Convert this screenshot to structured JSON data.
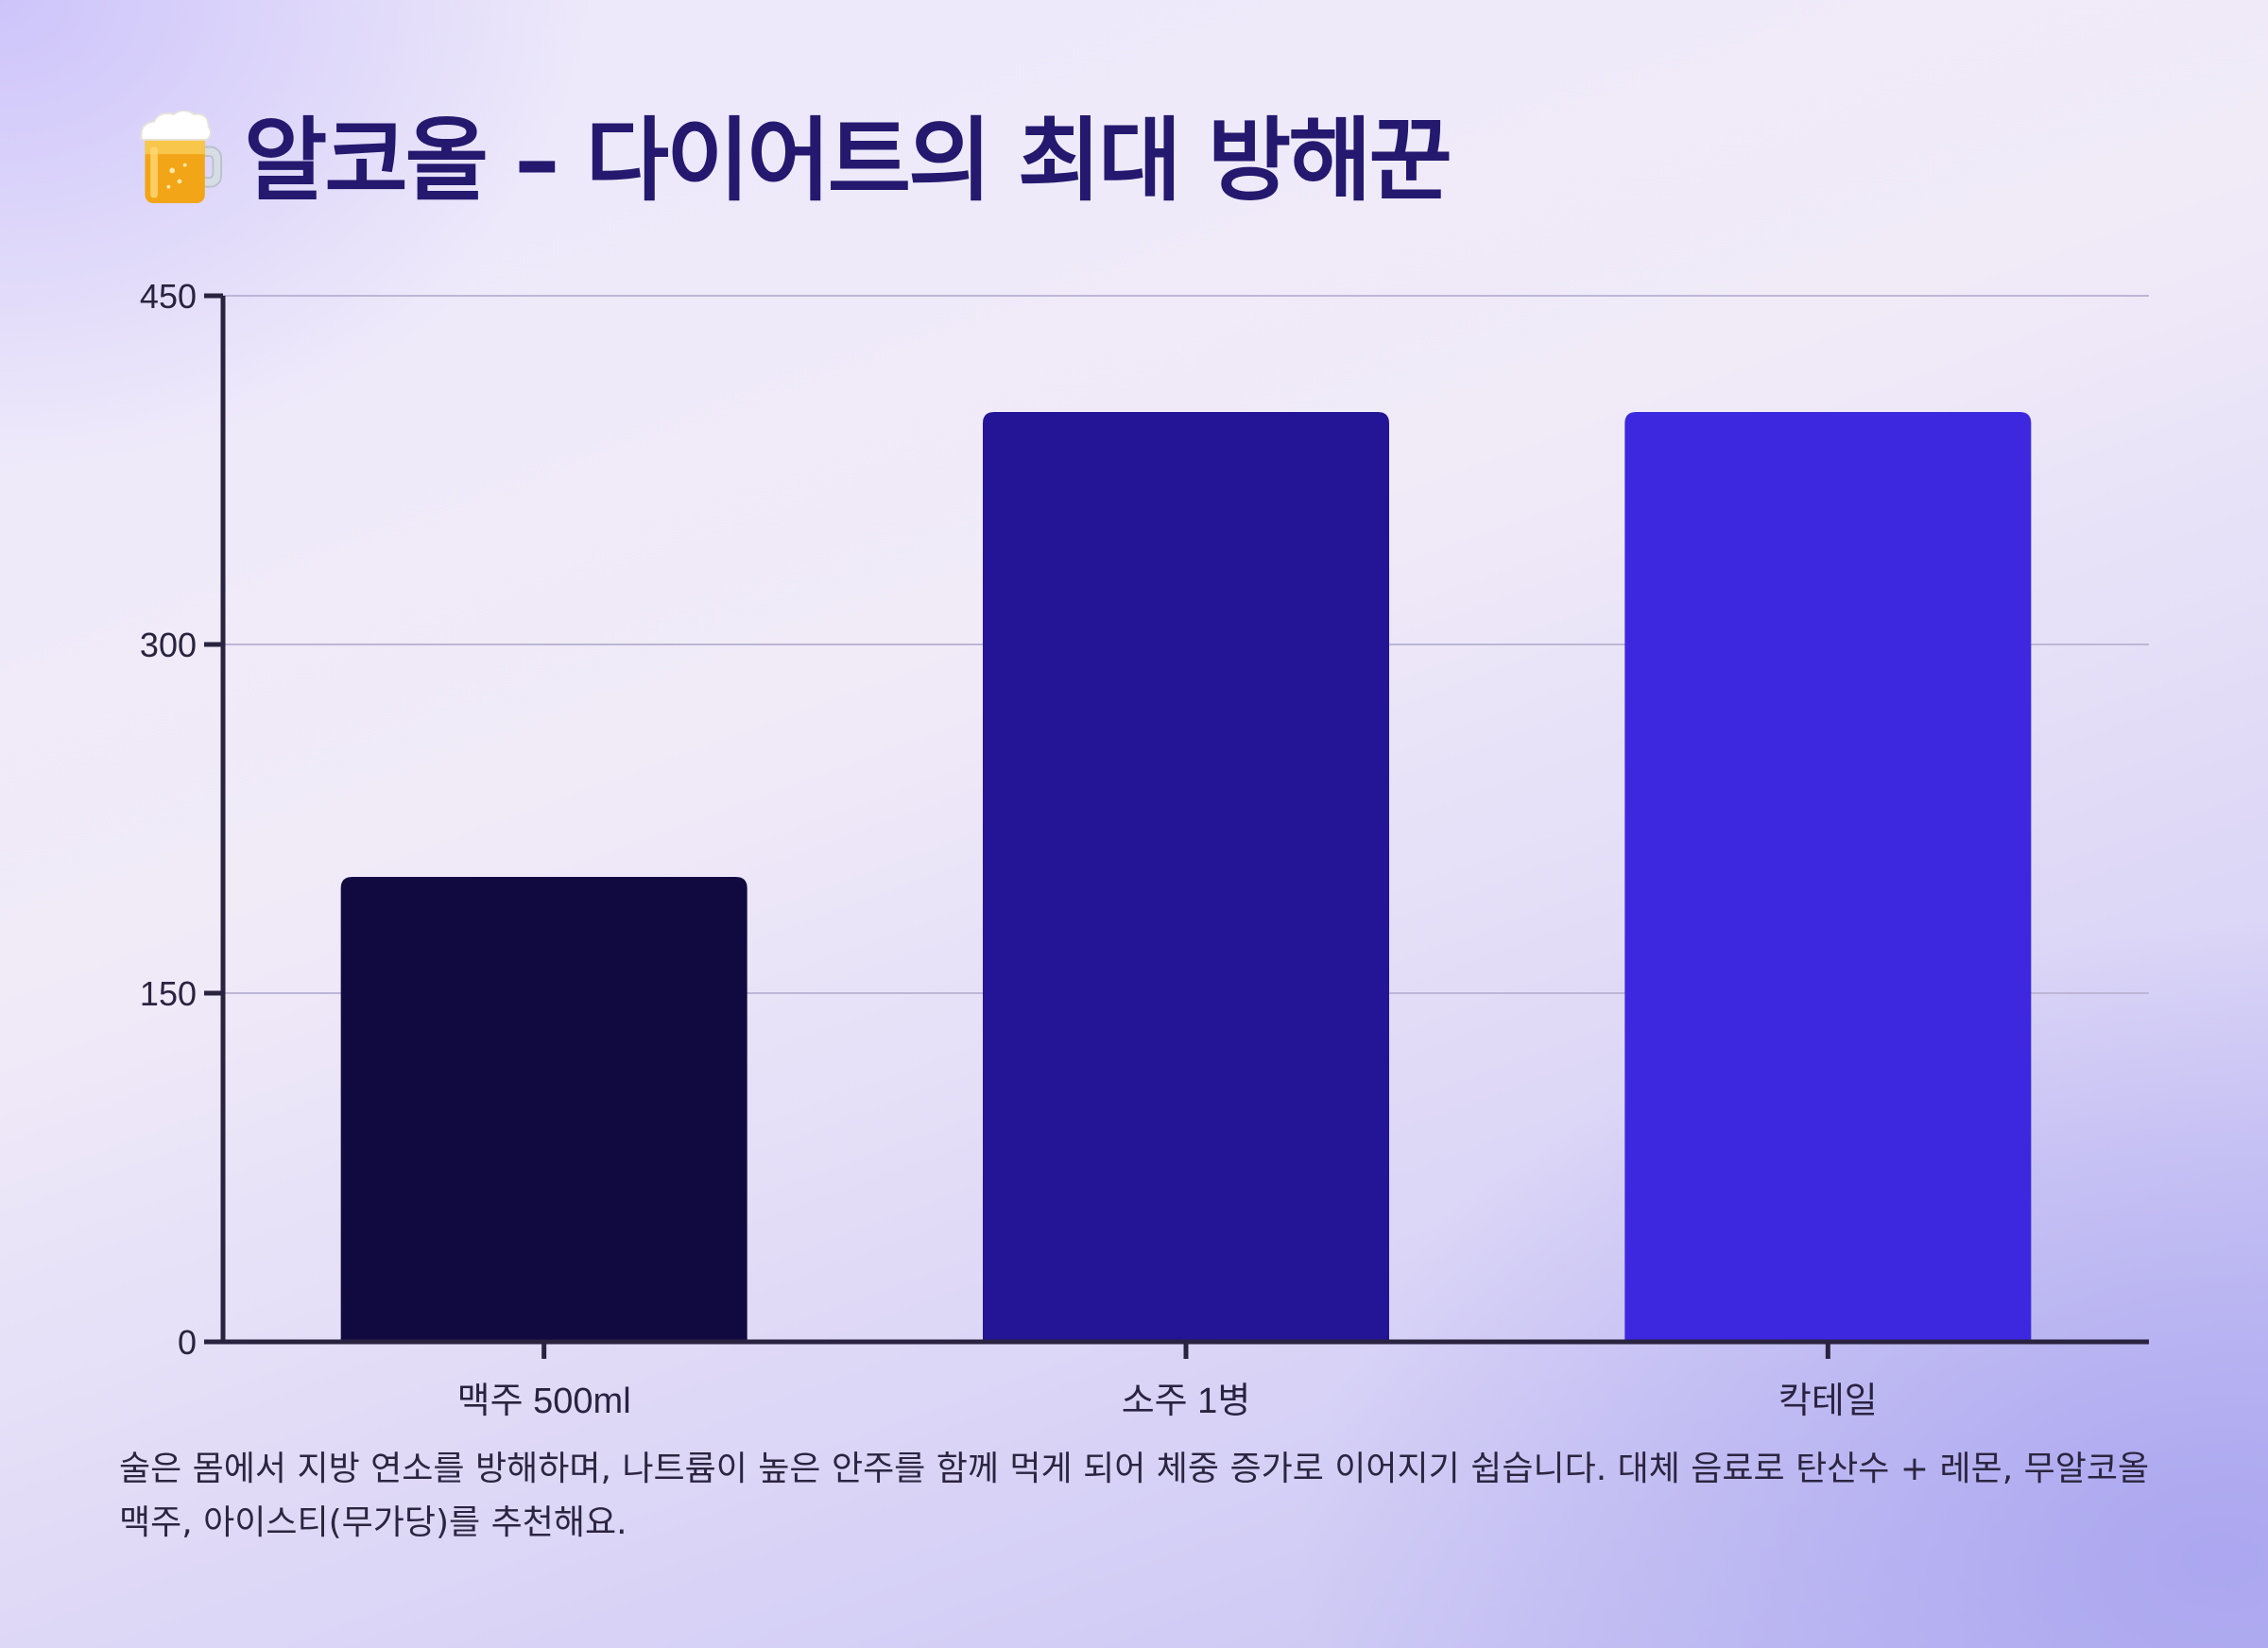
{
  "page": {
    "title": "알코올 – 다이어트의 최대 방해꾼",
    "title_icon": "beer-mug-icon",
    "note": "술은 몸에서 지방 연소를 방해하며, 나트륨이 높은 안주를 함께 먹게 되어 체중 증가로 이어지기 쉽습니다. 대체 음료로 탄산수 + 레몬, 무알코올 맥주, 아이스티(무가당)를 추천해요."
  },
  "colors": {
    "title": "#24196f",
    "axis": "#2a2340",
    "grid": "#bdb6d6",
    "bar_1": "#110a40",
    "bar_2": "#231595",
    "bar_3": "#3d28e0"
  },
  "chart_data": {
    "type": "bar",
    "categories": [
      "맥주 500ml",
      "소주 1병",
      "칵테일"
    ],
    "values": [
      200,
      400,
      400
    ],
    "title": "",
    "xlabel": "",
    "ylabel": "",
    "ylim": [
      0,
      450
    ],
    "yticks": [
      0,
      150,
      300,
      450
    ],
    "grid": true,
    "legend": "none"
  }
}
